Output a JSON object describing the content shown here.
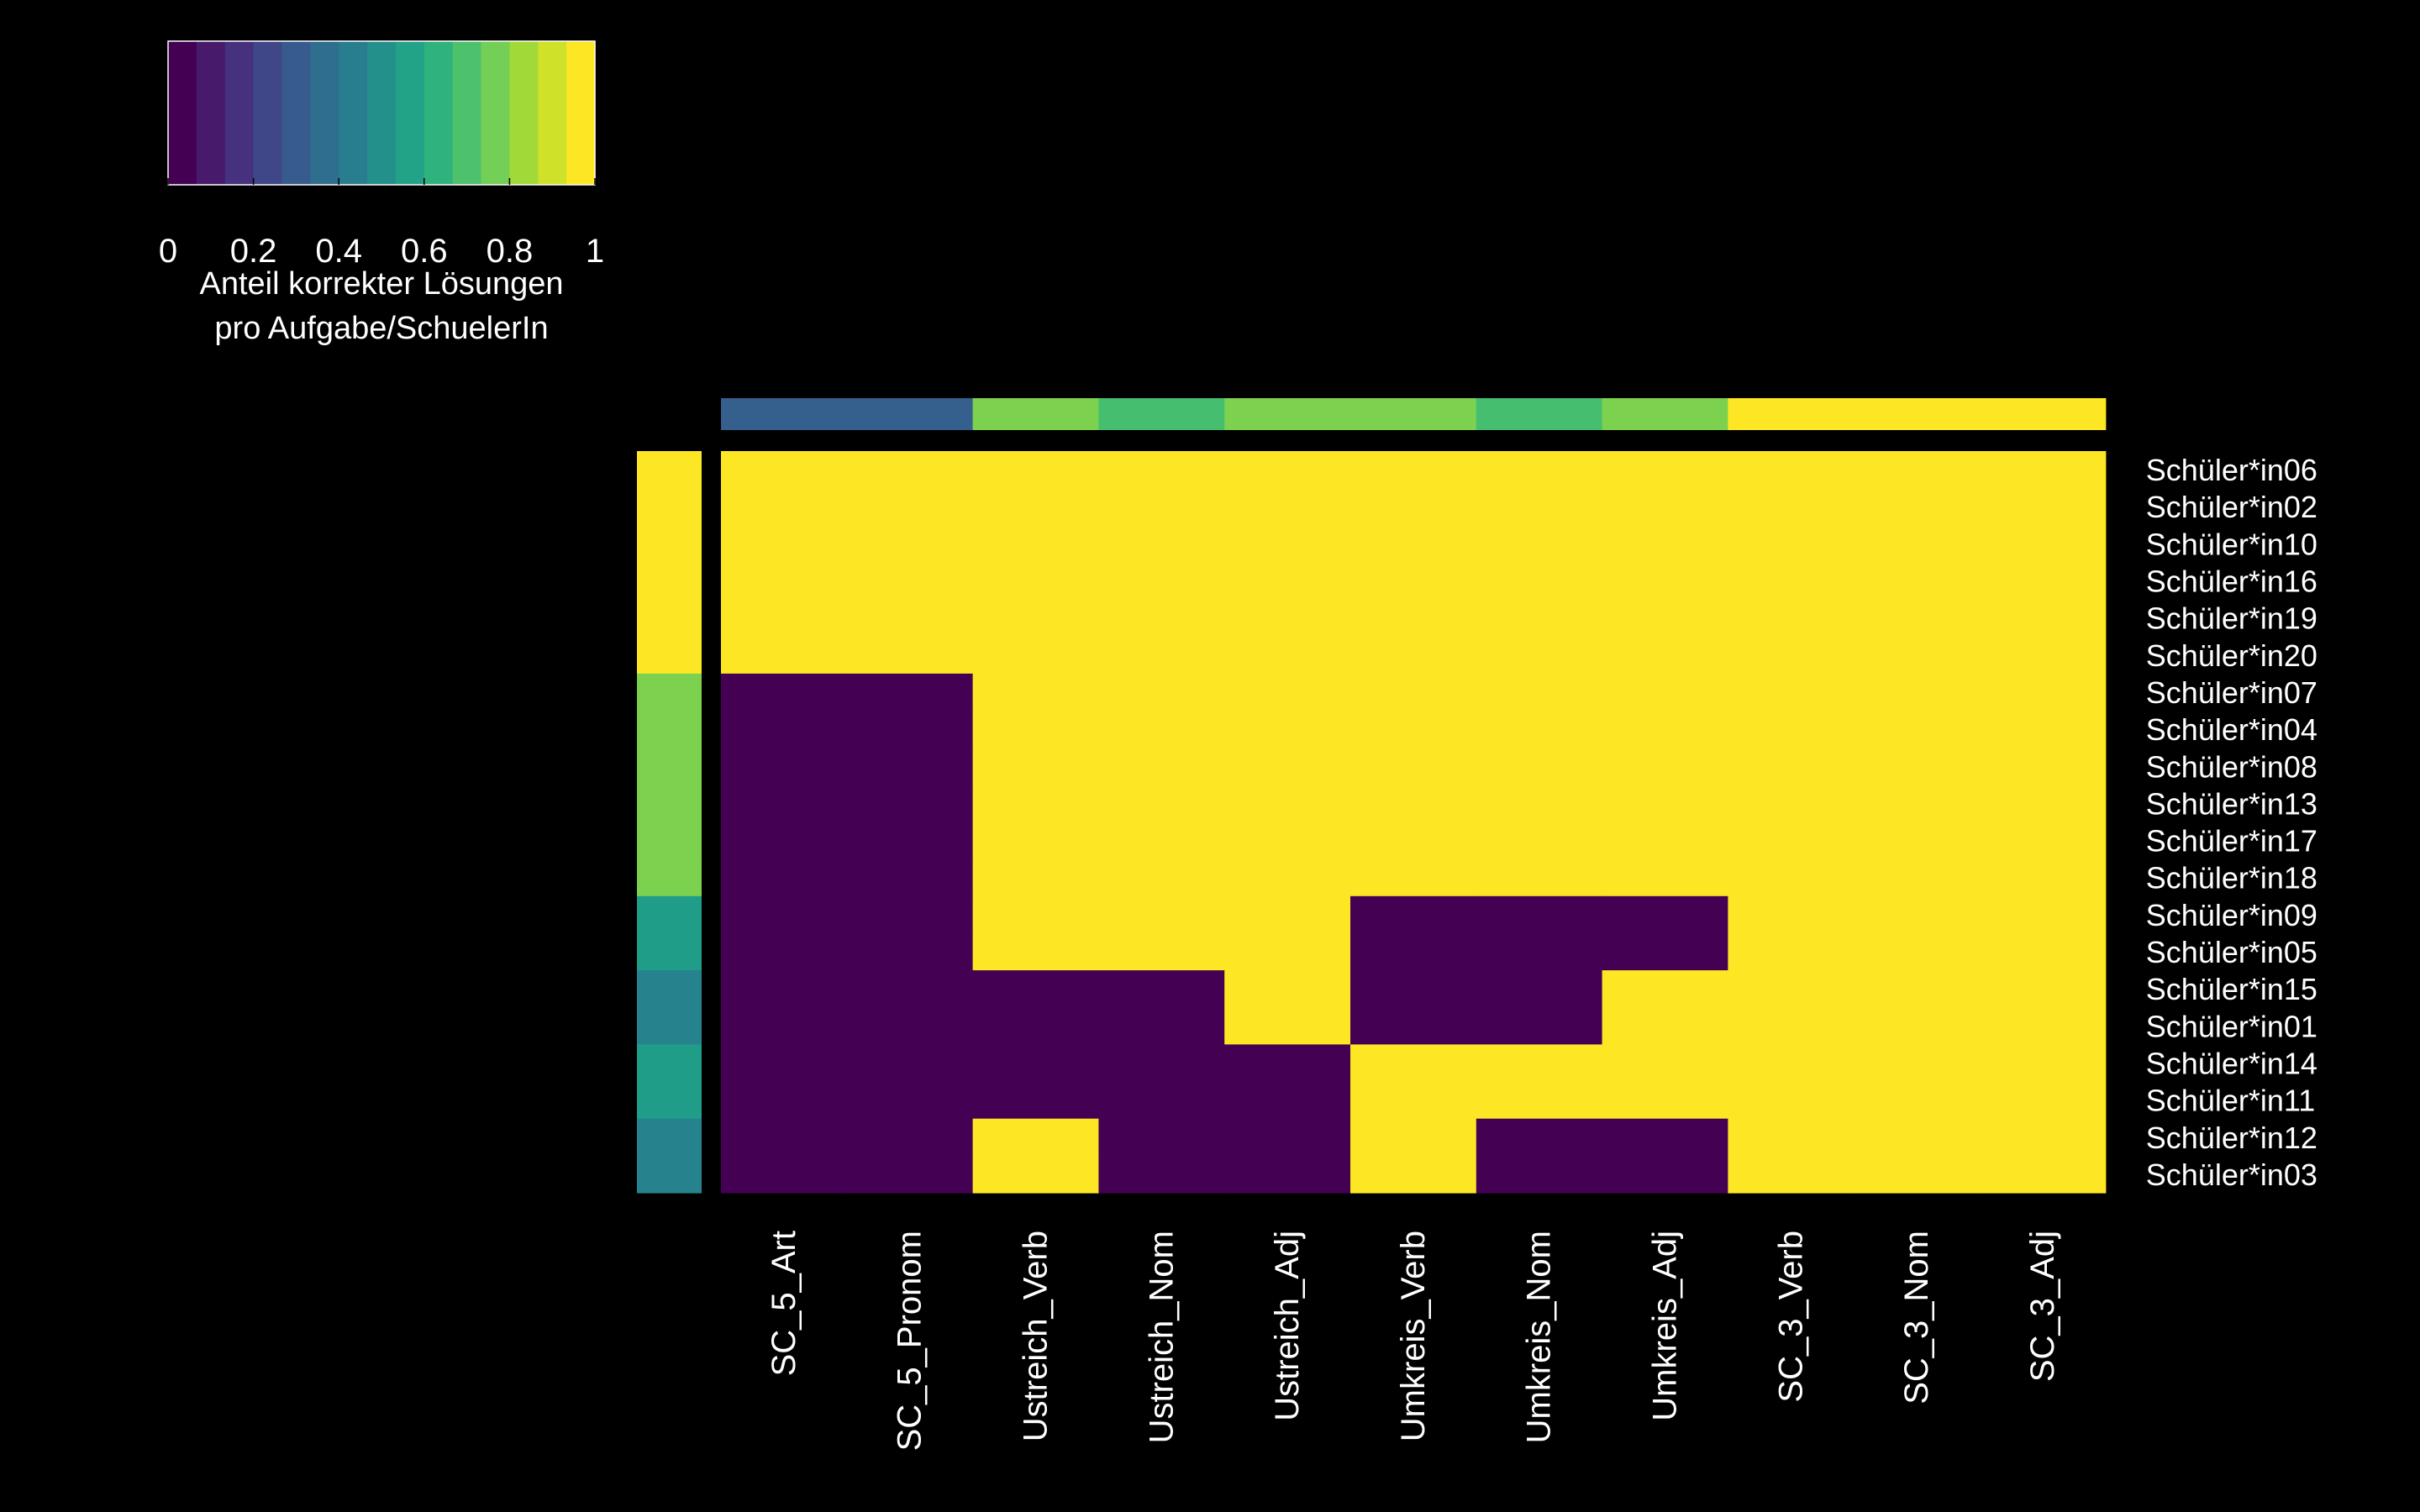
{
  "legend": {
    "title_line1": "Anteil korrekter Lösungen",
    "title_line2": "pro Aufgabe/SchuelerIn",
    "tick_labels": [
      "0",
      "0.2",
      "0.4",
      "0.6",
      "0.8",
      "1"
    ],
    "tick_values": [
      0,
      0.2,
      0.4,
      0.6,
      0.8,
      1
    ],
    "range": [
      0,
      1
    ],
    "steps": 15
  },
  "colors": {
    "background": "#000000",
    "text": "#ffffff",
    "viridis": [
      "#440154",
      "#482878",
      "#3e4989",
      "#31688e",
      "#26828e",
      "#1f9e89",
      "#35b779",
      "#6ece58",
      "#b5de2b",
      "#fde725"
    ]
  },
  "chart_data": {
    "type": "heatmap",
    "columns": [
      "SC_5_Art",
      "SC_5_Pronom",
      "Ustreich_Verb",
      "Ustreich_Nom",
      "Ustreich_Adj",
      "Umkreis_Verb",
      "Umkreis_Nom",
      "Umkreis_Adj",
      "SC_3_Verb",
      "SC_3_Nom",
      "SC_3_Adj"
    ],
    "rows": [
      "Schüler*in06",
      "Schüler*in02",
      "Schüler*in10",
      "Schüler*in16",
      "Schüler*in19",
      "Schüler*in20",
      "Schüler*in07",
      "Schüler*in04",
      "Schüler*in08",
      "Schüler*in13",
      "Schüler*in17",
      "Schüler*in18",
      "Schüler*in09",
      "Schüler*in05",
      "Schüler*in15",
      "Schüler*in01",
      "Schüler*in14",
      "Schüler*in11",
      "Schüler*in12",
      "Schüler*in03"
    ],
    "values": [
      [
        1,
        1,
        1,
        1,
        1,
        1,
        1,
        1,
        1,
        1,
        1
      ],
      [
        1,
        1,
        1,
        1,
        1,
        1,
        1,
        1,
        1,
        1,
        1
      ],
      [
        1,
        1,
        1,
        1,
        1,
        1,
        1,
        1,
        1,
        1,
        1
      ],
      [
        1,
        1,
        1,
        1,
        1,
        1,
        1,
        1,
        1,
        1,
        1
      ],
      [
        1,
        1,
        1,
        1,
        1,
        1,
        1,
        1,
        1,
        1,
        1
      ],
      [
        1,
        1,
        1,
        1,
        1,
        1,
        1,
        1,
        1,
        1,
        1
      ],
      [
        0,
        0,
        1,
        1,
        1,
        1,
        1,
        1,
        1,
        1,
        1
      ],
      [
        0,
        0,
        1,
        1,
        1,
        1,
        1,
        1,
        1,
        1,
        1
      ],
      [
        0,
        0,
        1,
        1,
        1,
        1,
        1,
        1,
        1,
        1,
        1
      ],
      [
        0,
        0,
        1,
        1,
        1,
        1,
        1,
        1,
        1,
        1,
        1
      ],
      [
        0,
        0,
        1,
        1,
        1,
        1,
        1,
        1,
        1,
        1,
        1
      ],
      [
        0,
        0,
        1,
        1,
        1,
        1,
        1,
        1,
        1,
        1,
        1
      ],
      [
        0,
        0,
        1,
        1,
        1,
        0,
        0,
        0,
        1,
        1,
        1
      ],
      [
        0,
        0,
        1,
        1,
        1,
        0,
        0,
        0,
        1,
        1,
        1
      ],
      [
        0,
        0,
        0,
        0,
        1,
        0,
        0,
        1,
        1,
        1,
        1
      ],
      [
        0,
        0,
        0,
        0,
        1,
        0,
        0,
        1,
        1,
        1,
        1
      ],
      [
        0,
        0,
        0,
        0,
        0,
        1,
        1,
        1,
        1,
        1,
        1
      ],
      [
        0,
        0,
        0,
        0,
        0,
        1,
        1,
        1,
        1,
        1,
        1
      ],
      [
        0,
        0,
        1,
        0,
        0,
        1,
        0,
        0,
        1,
        1,
        1
      ],
      [
        0,
        0,
        1,
        0,
        0,
        1,
        0,
        0,
        1,
        1,
        1
      ]
    ],
    "column_annotation": [
      0.3,
      0.3,
      0.8,
      0.7,
      0.8,
      0.8,
      0.7,
      0.8,
      1,
      1,
      1
    ],
    "row_annotation": [
      1,
      1,
      1,
      1,
      1,
      1,
      0.8,
      0.8,
      0.8,
      0.8,
      0.8,
      0.8,
      0.55,
      0.55,
      0.45,
      0.45,
      0.55,
      0.55,
      0.45,
      0.45
    ],
    "xlabel": "",
    "ylabel": "",
    "legend_position": "top-left"
  }
}
